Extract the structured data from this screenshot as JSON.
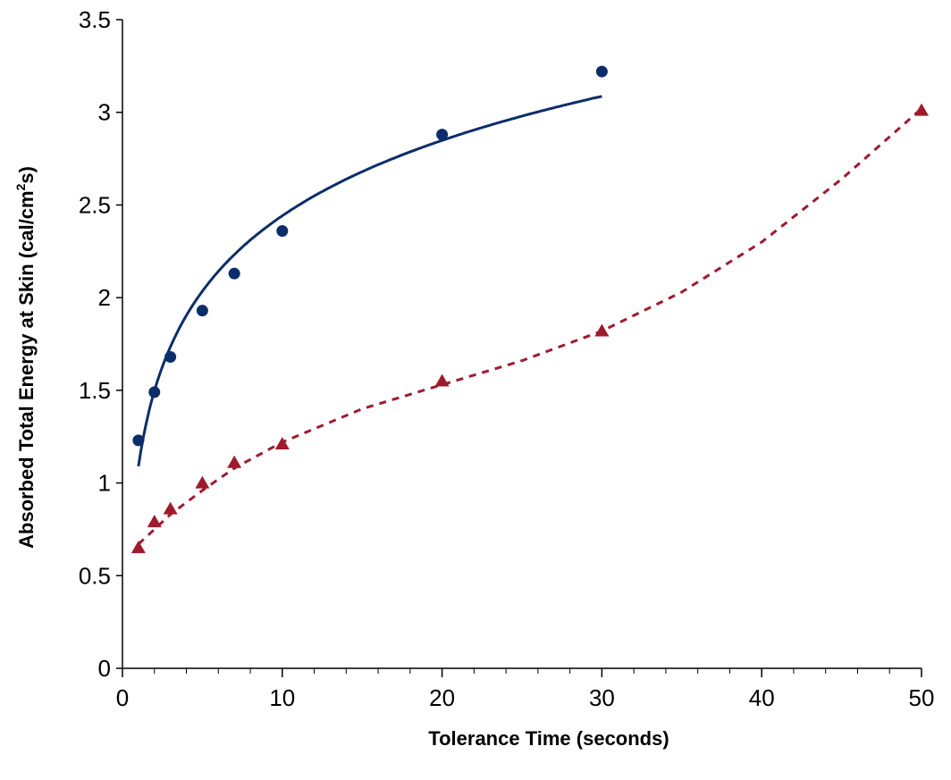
{
  "chart_data": {
    "type": "scatter",
    "xlabel": "Tolerance Time (seconds)",
    "ylabel_main": "Absorbed Total Energy at Skin (cal/cm",
    "ylabel_sup": "2",
    "ylabel_end": "s)",
    "xlim": [
      0,
      50
    ],
    "ylim": [
      0,
      3.5
    ],
    "x_ticks": [
      0,
      10,
      20,
      30,
      40,
      50
    ],
    "x_tick_labels": [
      "0",
      "10",
      "20",
      "30",
      "40",
      "50"
    ],
    "y_ticks": [
      0,
      0.5,
      1,
      1.5,
      2,
      2.5,
      3,
      3.5
    ],
    "y_tick_labels": [
      "0",
      "0.5",
      "1",
      "1.5",
      "2",
      "2.5",
      "3",
      "3.5"
    ],
    "x_minor_step": 2,
    "grid": false,
    "legend": "none",
    "series": [
      {
        "marker": "circle",
        "color": "#0b2d6b",
        "x": [
          1,
          2,
          3,
          5,
          7,
          10,
          20,
          30
        ],
        "y": [
          1.23,
          1.49,
          1.68,
          1.93,
          2.13,
          2.36,
          2.88,
          3.22
        ]
      },
      {
        "marker": "triangle",
        "color": "#a01a2e",
        "x": [
          1,
          2,
          3,
          5,
          7,
          10,
          20,
          30,
          50
        ],
        "y": [
          0.65,
          0.79,
          0.86,
          1.0,
          1.11,
          1.21,
          1.55,
          1.82,
          3.01
        ]
      }
    ],
    "trendlines": [
      {
        "style": "solid",
        "color": "#0b2d6b",
        "fit": "log",
        "a": 1.09,
        "b": 0.587,
        "x_range": [
          1,
          30
        ]
      },
      {
        "style": "dotted",
        "color": "#a01a2e",
        "fit": "poly3",
        "x": [
          1,
          2,
          3,
          5,
          7,
          10,
          15,
          20,
          25,
          30,
          35,
          40,
          45,
          50
        ],
        "y": [
          0.67,
          0.75,
          0.83,
          0.96,
          1.08,
          1.22,
          1.4,
          1.53,
          1.66,
          1.82,
          2.03,
          2.3,
          2.64,
          3.02
        ]
      }
    ]
  }
}
